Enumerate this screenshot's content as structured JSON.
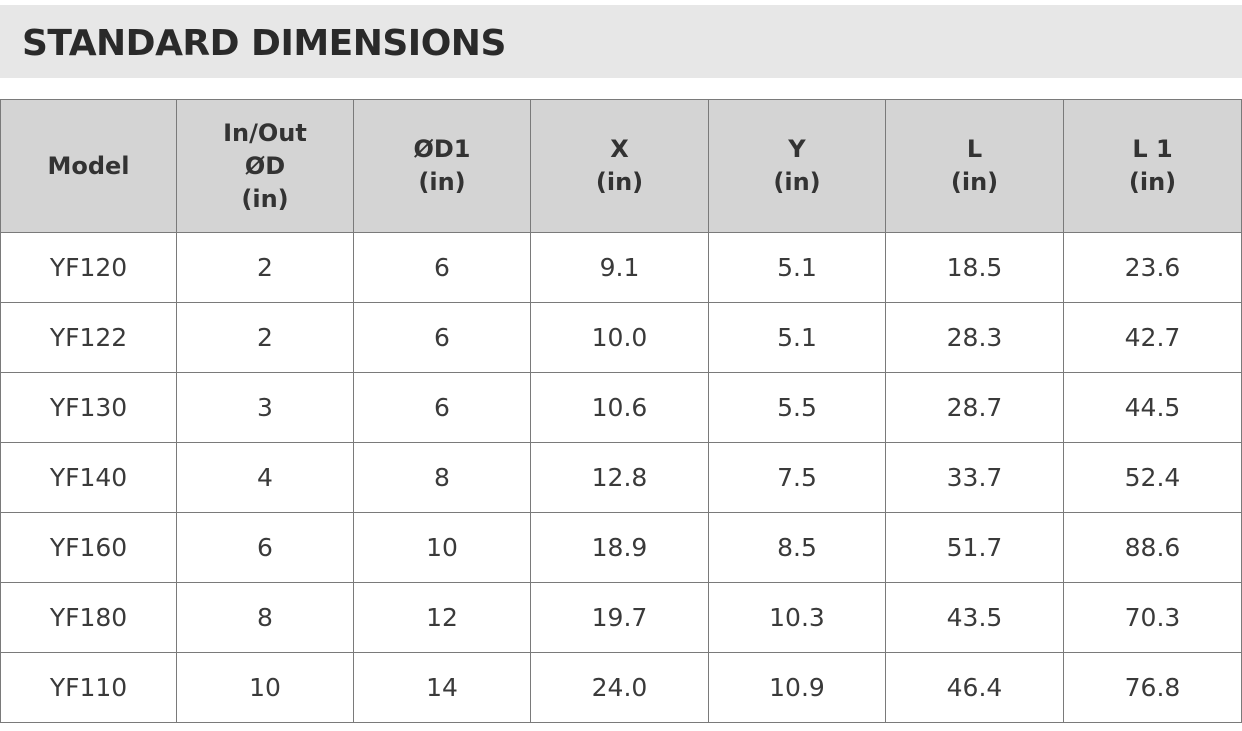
{
  "header": {
    "title": "STANDARD DIMENSIONS"
  },
  "table": {
    "columns": [
      [
        "Model"
      ],
      [
        "In/Out",
        "ØD",
        "(in)"
      ],
      [
        "ØD1",
        "(in)"
      ],
      [
        "X",
        "(in)"
      ],
      [
        "Y",
        "(in)"
      ],
      [
        "L",
        "(in)"
      ],
      [
        "L 1",
        "(in)"
      ]
    ],
    "rows": [
      [
        "YF120",
        "2",
        "6",
        "9.1",
        "5.1",
        "18.5",
        "23.6"
      ],
      [
        "YF122",
        "2",
        "6",
        "10.0",
        "5.1",
        "28.3",
        "42.7"
      ],
      [
        "YF130",
        "3",
        "6",
        "10.6",
        "5.5",
        "28.7",
        "44.5"
      ],
      [
        "YF140",
        "4",
        "8",
        "12.8",
        "7.5",
        "33.7",
        "52.4"
      ],
      [
        "YF160",
        "6",
        "10",
        "18.9",
        "8.5",
        "51.7",
        "88.6"
      ],
      [
        "YF180",
        "8",
        "12",
        "19.7",
        "10.3",
        "43.5",
        "70.3"
      ],
      [
        "YF110",
        "10",
        "14",
        "24.0",
        "10.9",
        "46.4",
        "76.8"
      ]
    ]
  }
}
